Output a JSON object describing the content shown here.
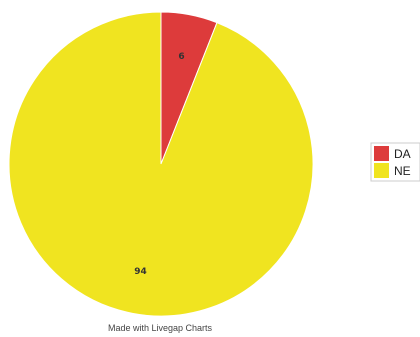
{
  "chart_data": {
    "type": "pie",
    "categories": [
      "DA",
      "NE"
    ],
    "values": [
      6,
      94
    ],
    "colors": {
      "DA": "#dd3b3b",
      "NE": "#f0e420"
    },
    "legend_position": "right",
    "data_labels": [
      "6",
      "94"
    ],
    "start_angle_deg": 0,
    "direction": "clockwise"
  },
  "footer": {
    "credit": "Made with Livegap Charts"
  },
  "style": {
    "slice_stroke": "#c9bd1c",
    "legend_border": "#cccccc"
  }
}
